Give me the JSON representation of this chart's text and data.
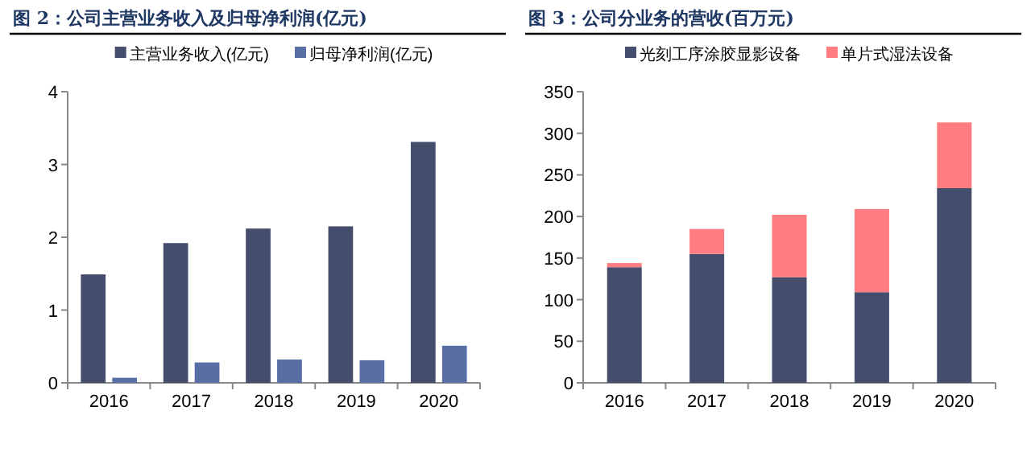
{
  "chart_data": [
    {
      "type": "bar",
      "title": "图 2：公司主营业务收入及归母净利润(亿元)",
      "categories": [
        "2016",
        "2017",
        "2018",
        "2019",
        "2020"
      ],
      "series": [
        {
          "name": "主营业务收入(亿元)",
          "color": "#444d6c",
          "values": [
            1.49,
            1.92,
            2.12,
            2.15,
            3.31
          ]
        },
        {
          "name": "归母净利润(亿元)",
          "color": "#5a6ea6",
          "values": [
            0.07,
            0.28,
            0.32,
            0.31,
            0.51
          ]
        }
      ],
      "ylim": [
        0,
        4
      ],
      "yticks": [
        0,
        1,
        2,
        3,
        4
      ],
      "legend": "top"
    },
    {
      "type": "bar",
      "title": "图 3：公司分业务的营收(百万元)",
      "categories": [
        "2016",
        "2017",
        "2018",
        "2019",
        "2020"
      ],
      "stacked": true,
      "series": [
        {
          "name": "光刻工序涂胶显影设备",
          "color": "#444d6c",
          "values": [
            139,
            155,
            127,
            109,
            234
          ]
        },
        {
          "name": "单片式湿法设备",
          "color": "#ff7c80",
          "values": [
            5,
            30,
            75,
            100,
            79
          ]
        }
      ],
      "ylim": [
        0,
        350
      ],
      "yticks": [
        0,
        50,
        100,
        150,
        200,
        250,
        300,
        350
      ],
      "legend": "top"
    }
  ]
}
